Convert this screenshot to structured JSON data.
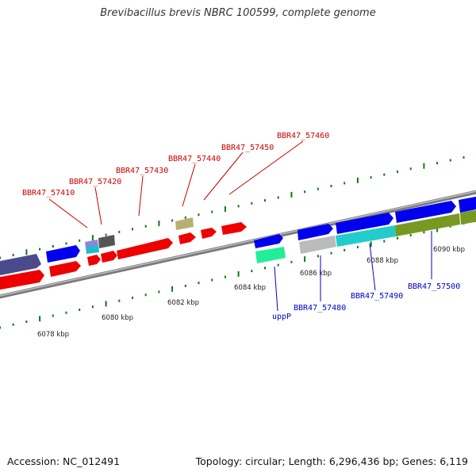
{
  "title": "Brevibacillus brevis NBRC 100599, complete genome",
  "footer": {
    "accession": "Accession: NC_012491",
    "topology": "Topology: circular; Length: 6,296,436 bp; Genes: 6,119"
  },
  "axis_labels": [
    "6078 kbp",
    "6080 kbp",
    "6082 kbp",
    "6084 kbp",
    "6086 kbp",
    "6088 kbp",
    "6090 kbp"
  ],
  "colors": {
    "label_top": "#cc0000",
    "label_bottom": "#0000cc",
    "tick": "#117711",
    "backbone": "#888888"
  },
  "gene_labels_top": [
    "BBR47_57410",
    "BBR47_57420",
    "BBR47_57430",
    "BBR47_57440",
    "BBR47_57450",
    "BBR47_57460"
  ],
  "gene_labels_bottom": [
    "uppP",
    "BBR47_57480",
    "BBR47_57490",
    "BBR47_57500"
  ]
}
